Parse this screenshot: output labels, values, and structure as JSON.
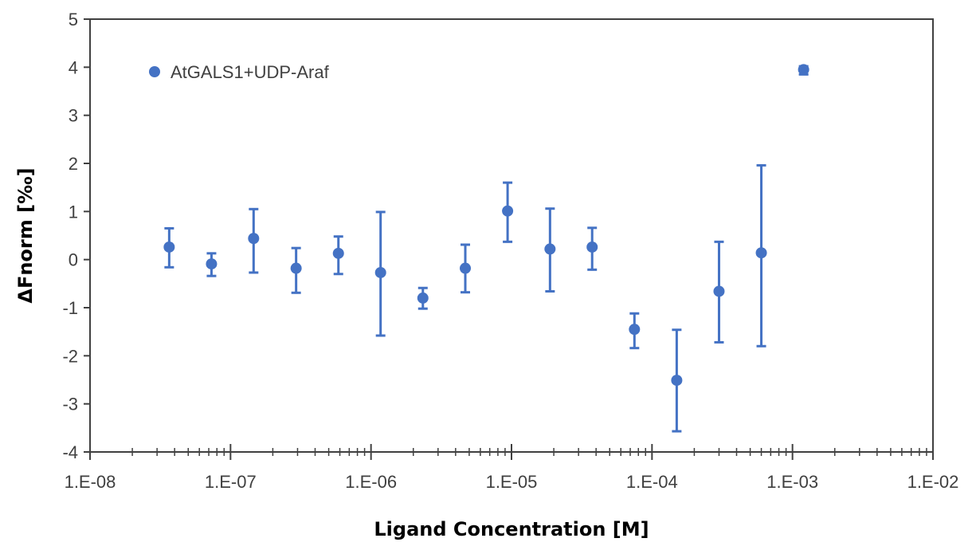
{
  "chart_data": {
    "type": "scatter",
    "xlabel": "Ligand Concentration [M]",
    "ylabel": "ΔFnorm [‰]",
    "x_scale": "log",
    "xlim": [
      1e-08,
      0.01
    ],
    "ylim": [
      -4,
      5
    ],
    "x_tick_values": [
      1e-08,
      1e-07,
      1e-06,
      1e-05,
      0.0001,
      0.001,
      0.01
    ],
    "x_tick_labels": [
      "1.E-08",
      "1.E-07",
      "1.E-06",
      "1.E-05",
      "1.E-04",
      "1.E-03",
      "1.E-02"
    ],
    "y_tick_values": [
      5,
      4,
      3,
      2,
      1,
      0,
      -1,
      -2,
      -3,
      -4
    ],
    "y_tick_labels": [
      "5",
      "4",
      "3",
      "2",
      "1",
      "0",
      "-1",
      "-2",
      "-3",
      "-4"
    ],
    "grid": false,
    "legend_position": "top-left",
    "series": [
      {
        "name": "AtGALS1+UDP-Araf",
        "color": "#4472C4",
        "marker": "circle",
        "points": [
          {
            "x": 3.66e-08,
            "y": 0.26,
            "err_lo": 0.42,
            "err_hi": 0.39
          },
          {
            "x": 7.32e-08,
            "y": -0.09,
            "err_lo": 0.25,
            "err_hi": 0.22
          },
          {
            "x": 1.46e-07,
            "y": 0.44,
            "err_lo": 0.71,
            "err_hi": 0.61
          },
          {
            "x": 2.93e-07,
            "y": -0.18,
            "err_lo": 0.51,
            "err_hi": 0.42
          },
          {
            "x": 5.86e-07,
            "y": 0.13,
            "err_lo": 0.43,
            "err_hi": 0.35
          },
          {
            "x": 1.17e-06,
            "y": -0.27,
            "err_lo": 1.31,
            "err_hi": 1.26
          },
          {
            "x": 2.34e-06,
            "y": -0.8,
            "err_lo": 0.22,
            "err_hi": 0.21
          },
          {
            "x": 4.69e-06,
            "y": -0.18,
            "err_lo": 0.5,
            "err_hi": 0.49
          },
          {
            "x": 9.38e-06,
            "y": 1.01,
            "err_lo": 0.64,
            "err_hi": 0.59
          },
          {
            "x": 1.88e-05,
            "y": 0.22,
            "err_lo": 0.88,
            "err_hi": 0.84
          },
          {
            "x": 3.75e-05,
            "y": 0.26,
            "err_lo": 0.47,
            "err_hi": 0.4
          },
          {
            "x": 7.5e-05,
            "y": -1.45,
            "err_lo": 0.39,
            "err_hi": 0.33
          },
          {
            "x": 0.00015,
            "y": -2.51,
            "err_lo": 1.06,
            "err_hi": 1.05
          },
          {
            "x": 0.0003,
            "y": -0.66,
            "err_lo": 1.06,
            "err_hi": 1.03
          },
          {
            "x": 0.0006,
            "y": 0.14,
            "err_lo": 1.94,
            "err_hi": 1.82
          },
          {
            "x": 0.0012,
            "y": 3.95,
            "err_lo": 0.1,
            "err_hi": 0.07
          }
        ]
      }
    ]
  }
}
